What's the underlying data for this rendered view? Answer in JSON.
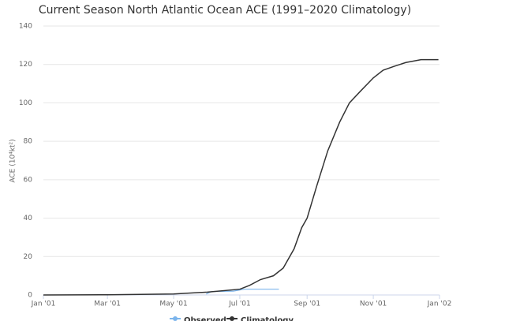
{
  "chart_data": {
    "type": "line",
    "title": "Current Season North Atlantic Ocean ACE (1991–2020 Climatology)",
    "y_label": "ACE (10⁴kt²)",
    "xlim": [
      0,
      365
    ],
    "xticks": [
      {
        "value": 0,
        "label": "Jan '01"
      },
      {
        "value": 59,
        "label": "Mar '01"
      },
      {
        "value": 120,
        "label": "May '01"
      },
      {
        "value": 181,
        "label": "Jul '01"
      },
      {
        "value": 243,
        "label": "Sep '01"
      },
      {
        "value": 304,
        "label": "Nov '01"
      },
      {
        "value": 365,
        "label": "Jan '02"
      }
    ],
    "ylim": [
      0,
      140
    ],
    "yticks": [
      0,
      20,
      40,
      60,
      80,
      100,
      120,
      140
    ],
    "grid": true,
    "series": [
      {
        "name": "Observed",
        "color": "#7cb5ec",
        "x": [
          150,
          155,
          175,
          185,
          217
        ],
        "values": [
          0.5,
          1.8,
          2,
          3,
          3
        ]
      },
      {
        "name": "Climatology",
        "color": "#333333",
        "x": [
          0,
          59,
          120,
          151,
          181,
          190,
          200,
          212,
          221,
          231,
          238,
          243,
          252,
          262,
          273,
          282,
          292,
          304,
          313,
          323,
          334,
          348,
          364
        ],
        "values": [
          0,
          0.1,
          0.5,
          1.5,
          3,
          5,
          8,
          10,
          14,
          24,
          35,
          40,
          57,
          75,
          90,
          100,
          106,
          113,
          117,
          119,
          121,
          122.5,
          122.5
        ]
      }
    ]
  }
}
